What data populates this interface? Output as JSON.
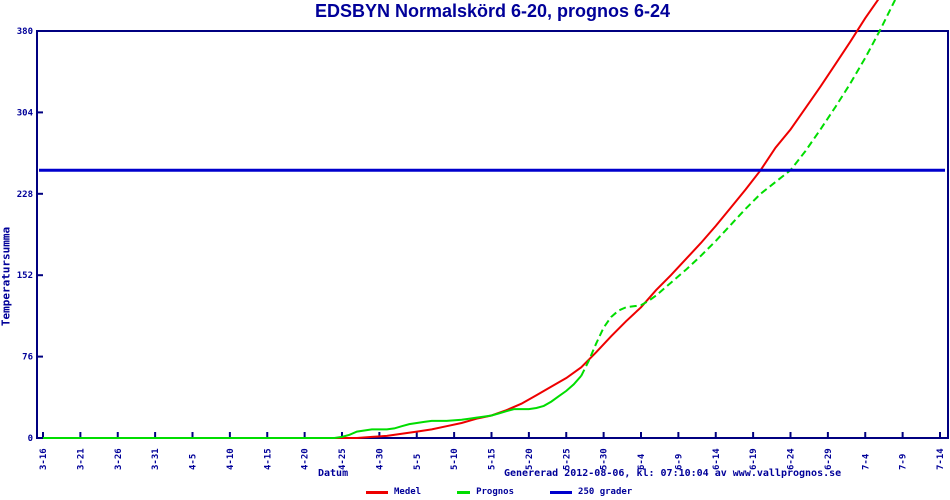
{
  "title": "EDSBYN Normalskörd 6-20, prognos 6-24",
  "footer": {
    "xlabel": "Datum",
    "generated": "Genererad 2012-08-06, kl: 07:10:04 av www.vallprognos.se"
  },
  "colors": {
    "navy_text": "#000099",
    "axis_frame": "#000080",
    "medel_red": "#ee0000",
    "prognos_green": "#00dd00",
    "threshold_blue": "#0000cd",
    "background": "#ffffff"
  },
  "chart_data": {
    "type": "line",
    "title": "EDSBYN Normalskörd 6-20, prognos 6-24",
    "xlabel": "Datum",
    "ylabel": "Temperatursumma",
    "x_tick_labels": [
      "3-16",
      "3-21",
      "3-26",
      "3-31",
      "4-5",
      "4-10",
      "4-15",
      "4-20",
      "4-25",
      "4-30",
      "5-5",
      "5-10",
      "5-15",
      "5-20",
      "5-25",
      "5-30",
      "6-4",
      "6-9",
      "6-14",
      "6-19",
      "6-24",
      "6-29",
      "7-4",
      "7-9",
      "7-14"
    ],
    "x_tick_days": [
      0,
      5,
      10,
      15,
      20,
      25,
      30,
      35,
      40,
      45,
      50,
      55,
      60,
      65,
      70,
      75,
      80,
      85,
      90,
      95,
      100,
      105,
      110,
      115,
      120
    ],
    "x_days_total": 120,
    "y_ticks": [
      0,
      76,
      152,
      228,
      304,
      380
    ],
    "ylim": [
      0,
      380
    ],
    "grid": false,
    "legend_position": "bottom",
    "threshold": {
      "label": "250 grader",
      "value": 250
    },
    "series": [
      {
        "name": "Medel",
        "style": "solid",
        "points": [
          [
            0,
            0
          ],
          [
            20,
            0
          ],
          [
            38,
            0
          ],
          [
            42,
            0
          ],
          [
            44,
            1
          ],
          [
            46,
            2
          ],
          [
            48,
            4
          ],
          [
            50,
            6
          ],
          [
            52,
            8
          ],
          [
            54,
            11
          ],
          [
            56,
            14
          ],
          [
            58,
            18
          ],
          [
            60,
            21
          ],
          [
            62,
            26
          ],
          [
            64,
            32
          ],
          [
            66,
            40
          ],
          [
            68,
            48
          ],
          [
            70,
            56
          ],
          [
            72,
            66
          ],
          [
            74,
            80
          ],
          [
            76,
            95
          ],
          [
            78,
            109
          ],
          [
            80,
            122
          ],
          [
            82,
            138
          ],
          [
            84,
            152
          ],
          [
            86,
            167
          ],
          [
            88,
            182
          ],
          [
            90,
            198
          ],
          [
            92,
            215
          ],
          [
            94,
            232
          ],
          [
            96,
            250
          ],
          [
            98,
            271
          ],
          [
            100,
            288
          ],
          [
            102,
            308
          ],
          [
            104,
            328
          ],
          [
            106,
            349
          ],
          [
            108,
            370
          ],
          [
            110,
            392
          ],
          [
            112,
            412
          ]
        ]
      },
      {
        "name": "Prognos",
        "style": "dashed",
        "dash_from_day": 72,
        "points": [
          [
            0,
            0
          ],
          [
            20,
            0
          ],
          [
            36,
            0
          ],
          [
            39,
            0
          ],
          [
            40,
            1
          ],
          [
            41,
            3
          ],
          [
            42,
            6
          ],
          [
            44,
            8
          ],
          [
            46,
            8
          ],
          [
            47,
            9
          ],
          [
            48,
            11
          ],
          [
            49,
            13
          ],
          [
            50,
            14
          ],
          [
            51,
            15
          ],
          [
            52,
            16
          ],
          [
            54,
            16
          ],
          [
            56,
            17
          ],
          [
            57,
            18
          ],
          [
            58,
            19
          ],
          [
            59,
            20
          ],
          [
            60,
            21
          ],
          [
            61,
            23
          ],
          [
            62,
            25
          ],
          [
            63,
            27
          ],
          [
            65,
            27
          ],
          [
            66,
            28
          ],
          [
            67,
            30
          ],
          [
            68,
            34
          ],
          [
            69,
            39
          ],
          [
            70,
            44
          ],
          [
            71,
            50
          ],
          [
            72,
            58
          ],
          [
            73,
            72
          ],
          [
            74,
            88
          ],
          [
            75,
            103
          ],
          [
            76,
            113
          ],
          [
            77,
            119
          ],
          [
            78,
            122
          ],
          [
            79,
            123
          ],
          [
            80,
            124
          ],
          [
            81,
            128
          ],
          [
            82,
            133
          ],
          [
            84,
            145
          ],
          [
            86,
            157
          ],
          [
            88,
            170
          ],
          [
            90,
            184
          ],
          [
            92,
            199
          ],
          [
            94,
            214
          ],
          [
            96,
            228
          ],
          [
            98,
            239
          ],
          [
            100,
            250
          ],
          [
            102,
            268
          ],
          [
            104,
            288
          ],
          [
            106,
            309
          ],
          [
            108,
            331
          ],
          [
            110,
            355
          ],
          [
            112,
            381
          ],
          [
            114,
            409
          ]
        ]
      }
    ],
    "legend": [
      {
        "label": "Medel"
      },
      {
        "label": "Prognos"
      },
      {
        "label": "250 grader"
      }
    ]
  }
}
